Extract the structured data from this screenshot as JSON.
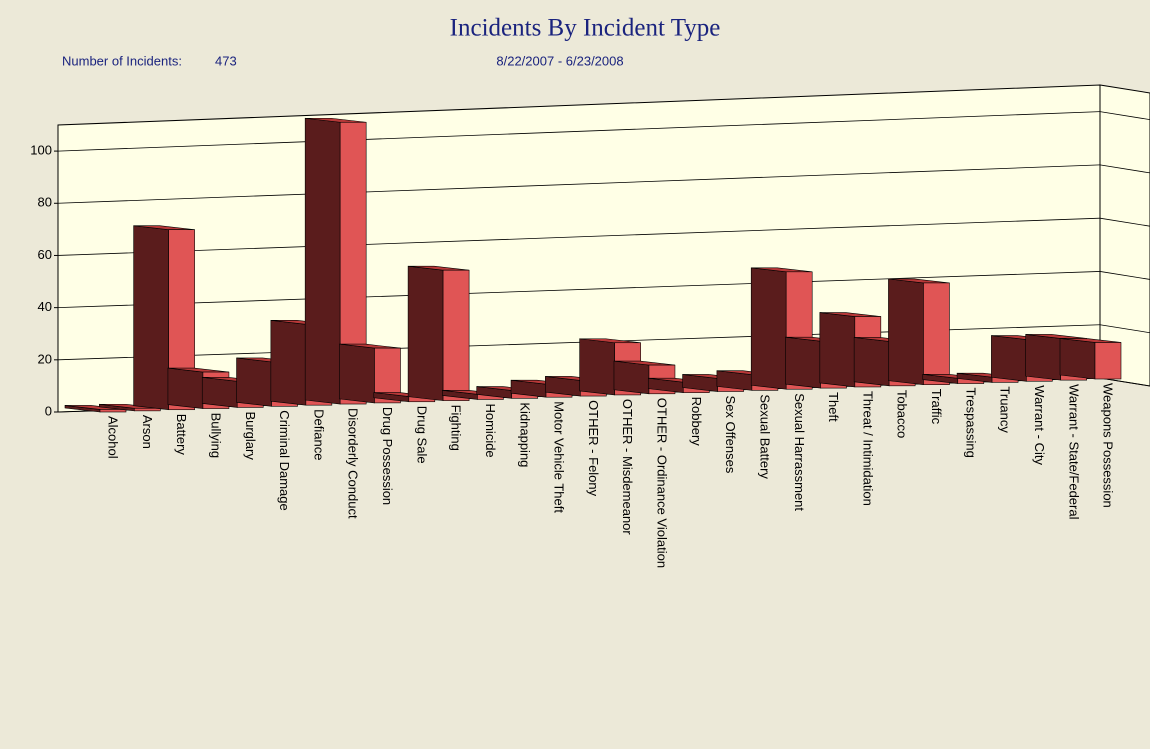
{
  "chart_data": {
    "type": "bar3d",
    "title": "Incidents By Incident Type",
    "count_label": "Number of Incidents:",
    "count": 473,
    "date_range": "8/22/2007  -  6/23/2008",
    "categories": [
      "Alcohol",
      "Arson",
      "Battery",
      "Bullying",
      "Burglary",
      "Criminal Damage",
      "Defiance",
      "Disorderly Conduct",
      "Drug Possession",
      "Drug Sale",
      "Fighting",
      "Homicide",
      "Kidnapping",
      "Motor Vehicle Theft",
      "OTHER - Felony",
      "OTHER - Misdemeanor",
      "OTHER - Ordinance Violation",
      "Robbery",
      "Sex Offenses",
      "Sexual Battery",
      "Sexual Harrassment",
      "Theft",
      "Threat / Intimidation",
      "Tobacco",
      "Traffic",
      "Trespassing",
      "Truancy",
      "Warrant - City",
      "Warrant - State/Federal",
      "Weapons Possession"
    ],
    "values": [
      1,
      1,
      69,
      14,
      10,
      17,
      31,
      108,
      21,
      2,
      50,
      2,
      3,
      5,
      6,
      20,
      11,
      4,
      5,
      6,
      45,
      18,
      27,
      17,
      39,
      2,
      2,
      16,
      16,
      14
    ],
    "color": "#e05555",
    "side_color": "#5a1c1c",
    "top_color": "#b83838",
    "ylim": [
      0,
      110
    ],
    "yticks": [
      0,
      20,
      40,
      60,
      80,
      100
    ],
    "grid": true
  }
}
